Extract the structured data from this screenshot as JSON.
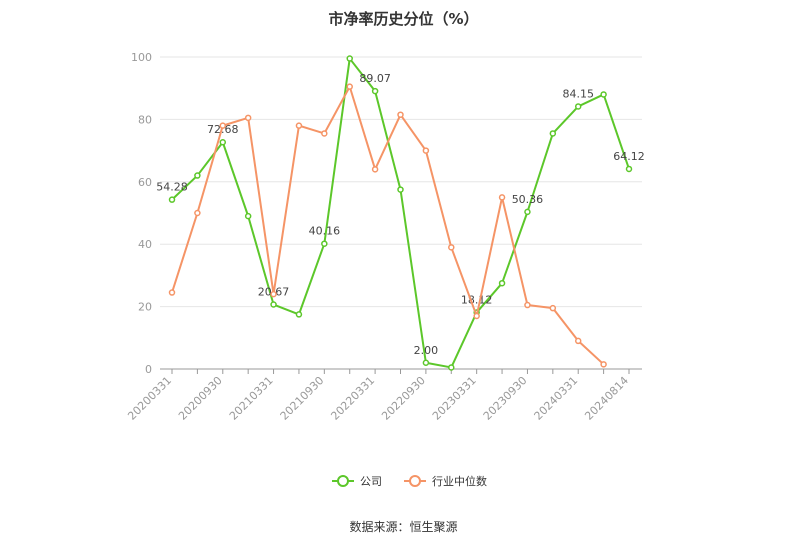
{
  "chart_data": {
    "type": "line",
    "title": "市净率历史分位（%）",
    "categories": [
      "20200331",
      "20200630",
      "20200930",
      "20201231",
      "20210331",
      "20210630",
      "20210930",
      "20211231",
      "20220331",
      "20220630",
      "20220930",
      "20221231",
      "20230331",
      "20230630",
      "20230930",
      "20231231",
      "20240331",
      "20240630",
      "20240814"
    ],
    "xtick_labels": [
      "20200331",
      "20200930",
      "20210331",
      "20210930",
      "20220331",
      "20220930",
      "20230331",
      "20230930",
      "20240331",
      "20240814"
    ],
    "yticks": [
      0,
      20,
      40,
      60,
      80,
      100
    ],
    "ylim": [
      0,
      100
    ],
    "grid": true,
    "legend_position": "bottom",
    "series": [
      {
        "name": "公司",
        "color": "#5cc72a",
        "values": [
          54.28,
          62.0,
          72.68,
          49.0,
          20.67,
          17.5,
          40.16,
          99.5,
          89.07,
          57.5,
          2.0,
          0.5,
          18.12,
          27.5,
          50.36,
          75.5,
          84.15,
          88.0,
          64.12
        ],
        "data_labels": [
          {
            "index": 0,
            "text": "54.28"
          },
          {
            "index": 2,
            "text": "72.68"
          },
          {
            "index": 4,
            "text": "20.67"
          },
          {
            "index": 6,
            "text": "40.16"
          },
          {
            "index": 8,
            "text": "89.07"
          },
          {
            "index": 10,
            "text": "2.00"
          },
          {
            "index": 12,
            "text": "18.12"
          },
          {
            "index": 14,
            "text": "50.36"
          },
          {
            "index": 16,
            "text": "84.15"
          },
          {
            "index": 18,
            "text": "64.12"
          }
        ]
      },
      {
        "name": "行业中位数",
        "color": "#f59466",
        "values": [
          24.5,
          50.0,
          78.0,
          80.5,
          24.0,
          78.0,
          75.5,
          90.5,
          64.0,
          81.5,
          70.0,
          39.0,
          17.0,
          55.0,
          20.5,
          19.5,
          9.0,
          1.5,
          null
        ]
      }
    ]
  },
  "source_text": "数据来源：恒生聚源"
}
